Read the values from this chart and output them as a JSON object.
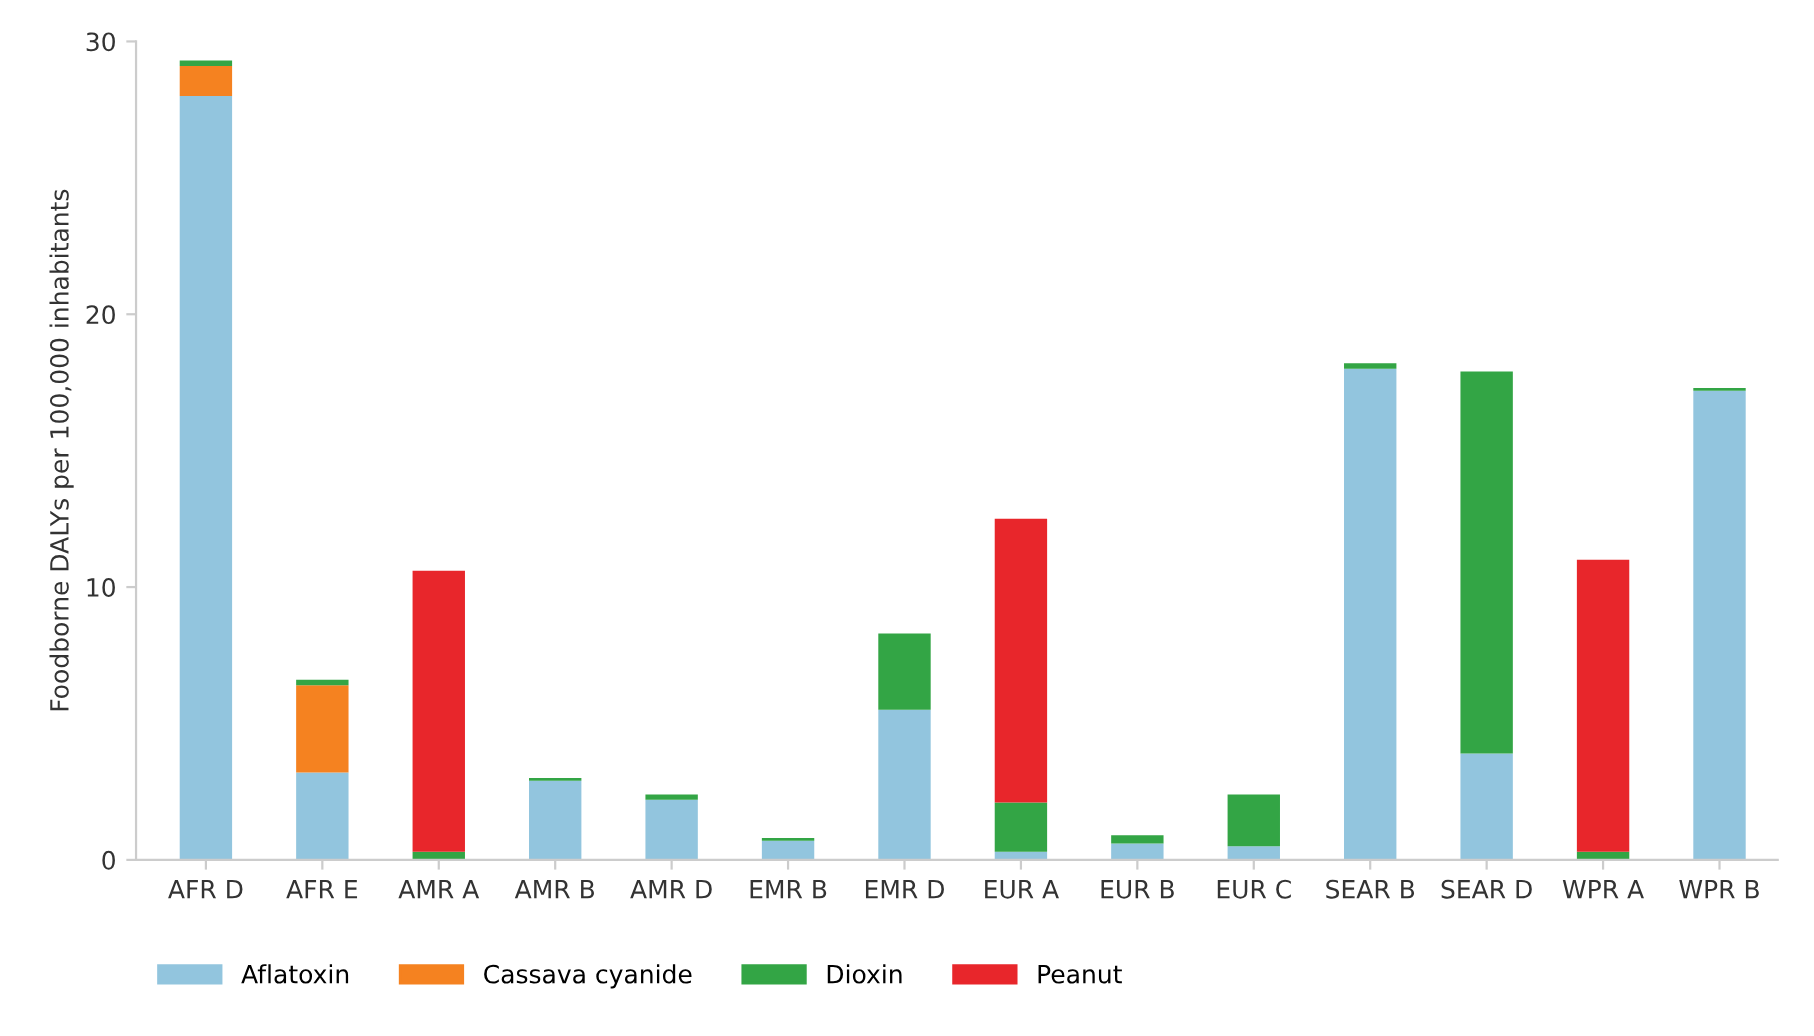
{
  "chart_data": {
    "type": "bar",
    "stacked": true,
    "ylabel": "Foodborne DALYs per 100,000 inhabitants",
    "categories": [
      "AFR D",
      "AFR E",
      "AMR A",
      "AMR B",
      "AMR D",
      "EMR B",
      "EMR D",
      "EUR A",
      "EUR B",
      "EUR C",
      "SEAR B",
      "SEAR D",
      "WPR A",
      "WPR B"
    ],
    "series": [
      {
        "name": "Aflatoxin",
        "color": "#92c5de",
        "values": [
          28.0,
          3.2,
          0,
          2.9,
          2.2,
          0.7,
          5.5,
          0.3,
          0.6,
          0.5,
          18.0,
          3.9,
          0,
          17.2
        ]
      },
      {
        "name": "Cassava cyanide",
        "color": "#f58220",
        "values": [
          1.1,
          3.2,
          0,
          0,
          0,
          0,
          0,
          0,
          0,
          0,
          0,
          0,
          0,
          0
        ]
      },
      {
        "name": "Dioxin",
        "color": "#33a545",
        "values": [
          0.2,
          0.2,
          0.3,
          0.1,
          0.2,
          0.1,
          2.8,
          1.8,
          0.3,
          1.9,
          0.2,
          14.0,
          0.3,
          0.1
        ]
      },
      {
        "name": "Peanut",
        "color": "#e8262b",
        "values": [
          0,
          0,
          10.3,
          0,
          0,
          0,
          0,
          10.4,
          0,
          0,
          0,
          0,
          10.7,
          0
        ]
      }
    ],
    "ylim": [
      0,
      30
    ],
    "yticks": [
      0,
      10,
      20,
      30
    ],
    "grid": false,
    "legend": "bottom left"
  }
}
